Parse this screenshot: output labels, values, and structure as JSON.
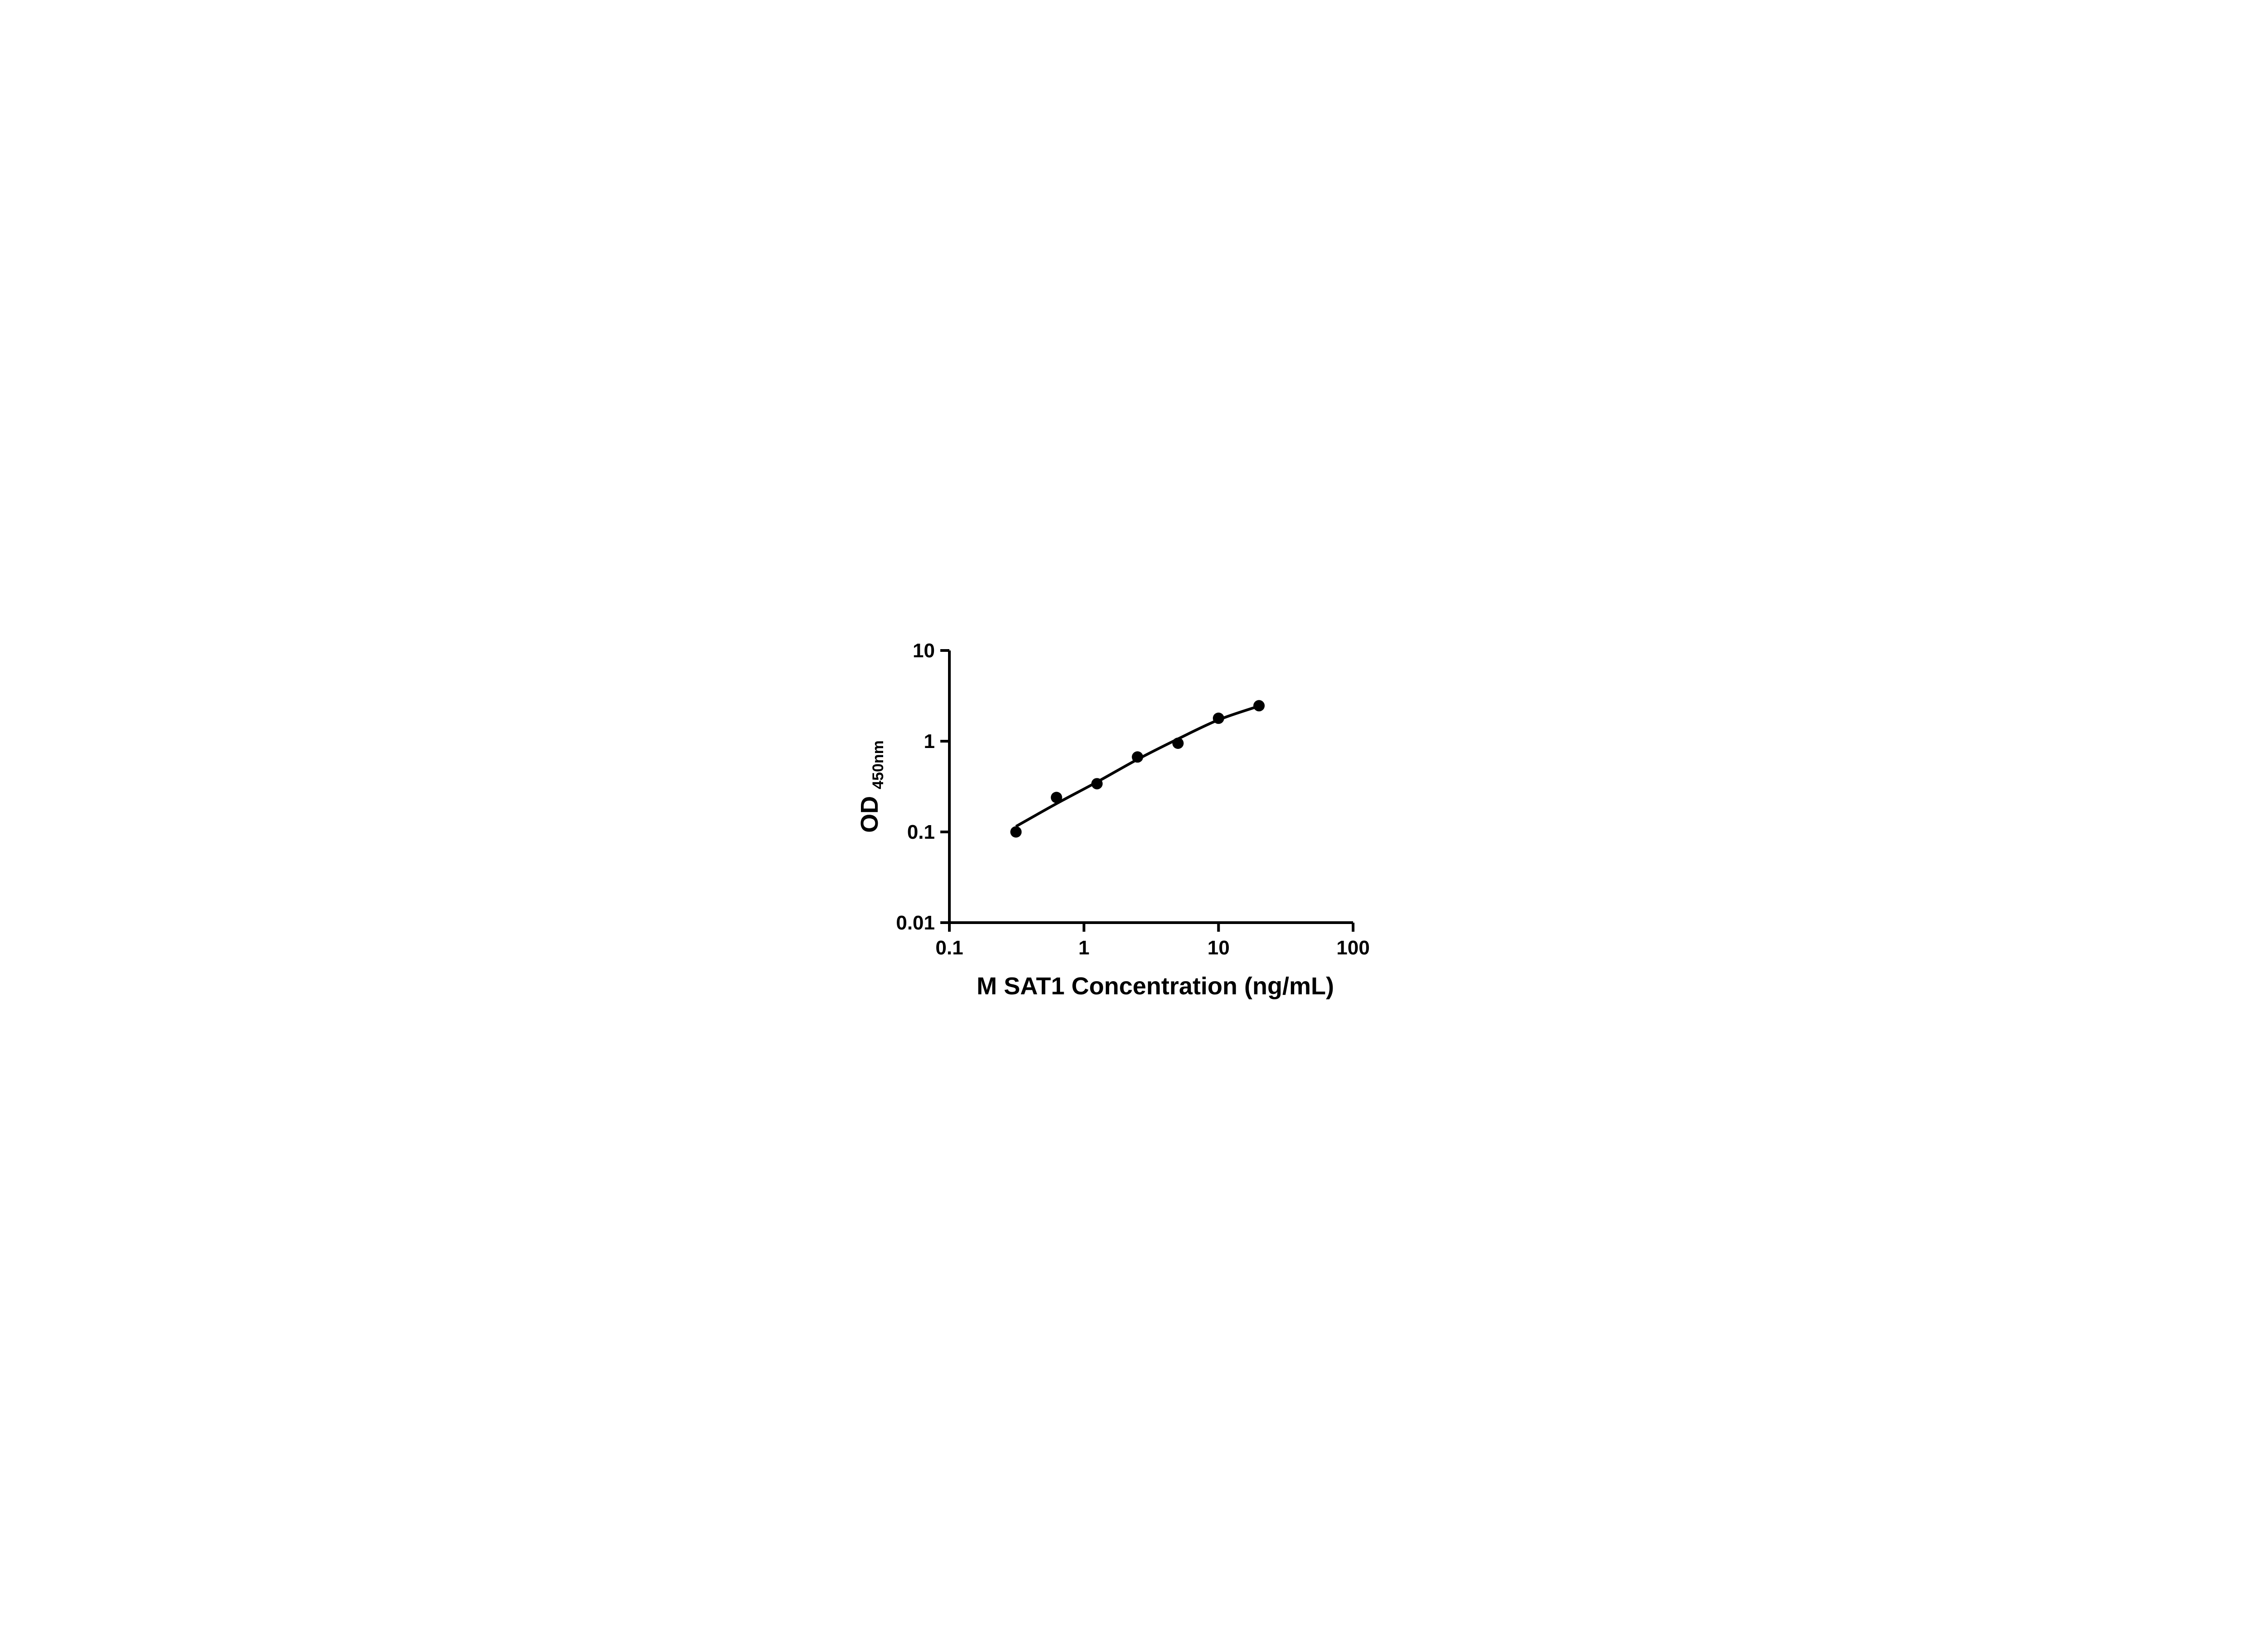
{
  "figure": {
    "background_color": "#ffffff",
    "ink_color": "#000000",
    "marker_shape": "filled-circle"
  },
  "chart_data": {
    "type": "scatter",
    "title": "",
    "xlabel": "M SAT1 Concentration (ng/mL)",
    "ylabel_main": "OD",
    "ylabel_sub": "450nm",
    "x_scale": "log10",
    "y_scale": "log10",
    "xlim": [
      0.1,
      100
    ],
    "ylim": [
      0.01,
      10
    ],
    "x_tick_values": [
      0.1,
      1,
      10,
      100
    ],
    "x_tick_labels": [
      "0.1",
      "1",
      "10",
      "100"
    ],
    "y_tick_values": [
      0.01,
      0.1,
      1,
      10
    ],
    "y_tick_labels": [
      "0.01",
      "0.1",
      "1",
      "10"
    ],
    "grid": false,
    "legend_position": "none",
    "series": [
      {
        "name": "standard points",
        "role": "points",
        "color": "#000000",
        "points": [
          {
            "x": 0.3125,
            "od": 0.1
          },
          {
            "x": 0.625,
            "od": 0.24
          },
          {
            "x": 1.25,
            "od": 0.34
          },
          {
            "x": 2.5,
            "od": 0.67
          },
          {
            "x": 5,
            "od": 0.95
          },
          {
            "x": 10,
            "od": 1.79
          },
          {
            "x": 20,
            "od": 2.46
          }
        ]
      },
      {
        "name": "fit curve",
        "role": "line",
        "color": "#000000",
        "points": [
          {
            "x": 0.3125,
            "od": 0.115
          },
          {
            "x": 0.625,
            "od": 0.205
          },
          {
            "x": 1.25,
            "od": 0.355
          },
          {
            "x": 2.5,
            "od": 0.63
          },
          {
            "x": 5,
            "od": 1.06
          },
          {
            "x": 10,
            "od": 1.72
          },
          {
            "x": 20,
            "od": 2.44
          }
        ]
      }
    ]
  }
}
